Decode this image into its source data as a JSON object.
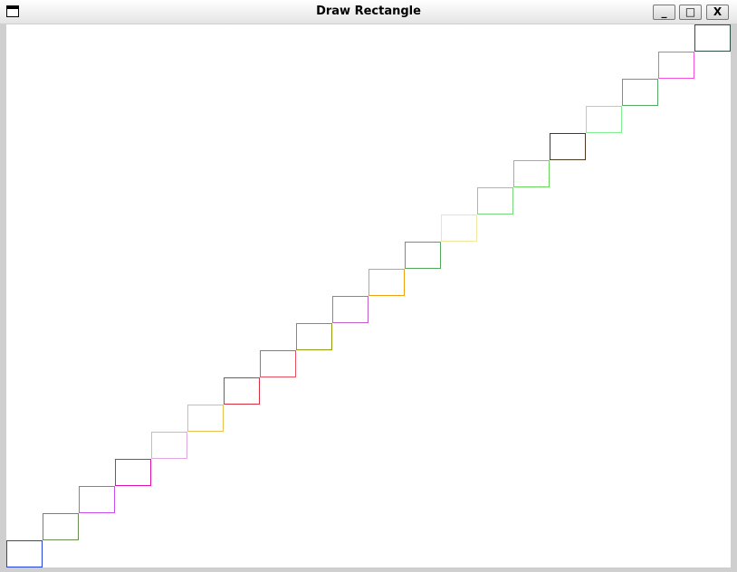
{
  "window": {
    "title": "Draw Rectangle",
    "minimize_label": "_",
    "maximize_label": "□",
    "close_label": "X"
  },
  "rectangles": {
    "count": 20,
    "colors": [
      "#2244dd",
      "#6a8f50",
      "#c84ef0",
      "#e010b0",
      "#e0a8e0",
      "#e8c050",
      "#d83040",
      "#e85060",
      "#909a10",
      "#c060c8",
      "#f0a010",
      "#50a858",
      "#f0e8a0",
      "#78d880",
      "#68d858",
      "#4a3820",
      "#80f090",
      "#58a868",
      "#f850e0",
      "#2f5040"
    ]
  }
}
